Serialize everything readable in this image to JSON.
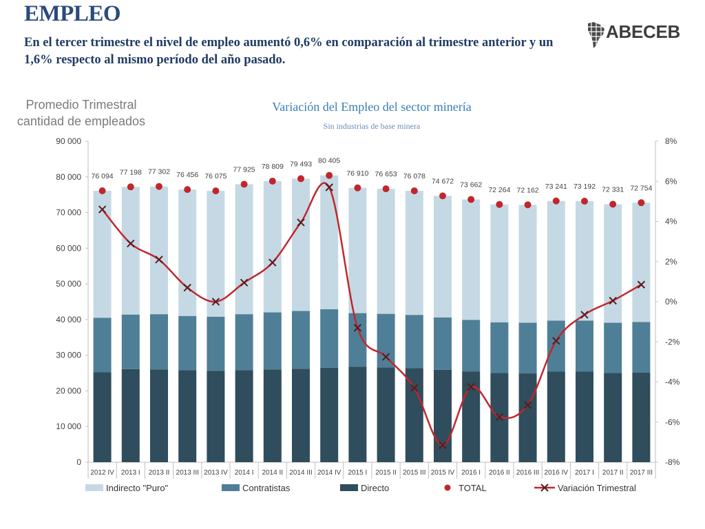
{
  "header": {
    "title": "EMPLEO",
    "subtitle": "En el tercer trimestre el nivel de empleo aumentó 0,6% en comparación al trimestre anterior y un 1,6% respecto al mismo período del año pasado.",
    "logo_text": "ABECEB"
  },
  "chart_data": {
    "type": "bar",
    "title": "Variación del Empleo del sector minería",
    "subtitle": "Sin industrias de base minera",
    "ylabel": "Promedio Trimestral cantidad de empleados",
    "categories": [
      "2012 IV",
      "2013 I",
      "2013 II",
      "2013 III",
      "2013 IV",
      "2014 I",
      "2014 II",
      "2014 III",
      "2014 IV",
      "2015 I",
      "2015 II",
      "2015 III",
      "2015 IV",
      "2016 I",
      "2016 II",
      "2016 III",
      "2016 IV",
      "2017 I",
      "2017 II",
      "2017 III"
    ],
    "stacked": true,
    "ylim": [
      0,
      90000
    ],
    "y_ticks": [
      "0",
      "10 000",
      "20 000",
      "30 000",
      "40 000",
      "50 000",
      "60 000",
      "70 000",
      "80 000",
      "90 000"
    ],
    "y2lim": [
      -8,
      8
    ],
    "y2_ticks": [
      "-8%",
      "-6%",
      "-4%",
      "-2%",
      "0%",
      "2%",
      "4%",
      "6%",
      "8%"
    ],
    "series": [
      {
        "name": "Indirecto \"Puro\"",
        "color": "#c5d9e4",
        "values": [
          35594,
          35798,
          35802,
          35456,
          35275,
          36425,
          36809,
          37093,
          37505,
          35110,
          35053,
          34778,
          34072,
          33762,
          33064,
          33062,
          33541,
          33492,
          33231,
          33454
        ]
      },
      {
        "name": "Contratistas",
        "color": "#4f7f97",
        "values": [
          15300,
          15300,
          15500,
          15200,
          15200,
          15700,
          16000,
          16200,
          16400,
          15000,
          15000,
          14900,
          14700,
          14500,
          14200,
          14200,
          14300,
          14300,
          14100,
          14200
        ]
      },
      {
        "name": "Directo",
        "color": "#2f4d5c",
        "values": [
          25200,
          26100,
          26000,
          25800,
          25600,
          25800,
          26000,
          26200,
          26500,
          26800,
          26600,
          26400,
          25900,
          25400,
          25000,
          24900,
          25400,
          25400,
          25000,
          25100
        ]
      },
      {
        "name": "TOTAL",
        "color": "#c0272d",
        "values": [
          76094,
          77198,
          77302,
          76456,
          76075,
          77925,
          78809,
          79493,
          80405,
          76910,
          76653,
          76078,
          74672,
          73662,
          72264,
          72162,
          73241,
          73192,
          72331,
          72754
        ]
      },
      {
        "name": "Variación Trimestral",
        "color": "#c0272d",
        "axis": "right",
        "values": [
          4.6,
          2.9,
          2.1,
          0.7,
          0.0,
          0.95,
          1.95,
          3.95,
          5.7,
          -1.3,
          -2.75,
          -4.3,
          -7.15,
          -4.25,
          -5.75,
          -5.15,
          -1.95,
          -0.65,
          0.05,
          0.85
        ]
      }
    ],
    "total_labels": [
      "76 094",
      "77 198",
      "77 302",
      "76 456",
      "76 075",
      "77 925",
      "78 809",
      "79 493",
      "80 405",
      "76 910",
      "76 653",
      "76 078",
      "74 672",
      "73 662",
      "72 264",
      "72 162",
      "73 241",
      "73 192",
      "72 331",
      "72 754"
    ],
    "legend_placement": "bottom",
    "grid": false
  }
}
